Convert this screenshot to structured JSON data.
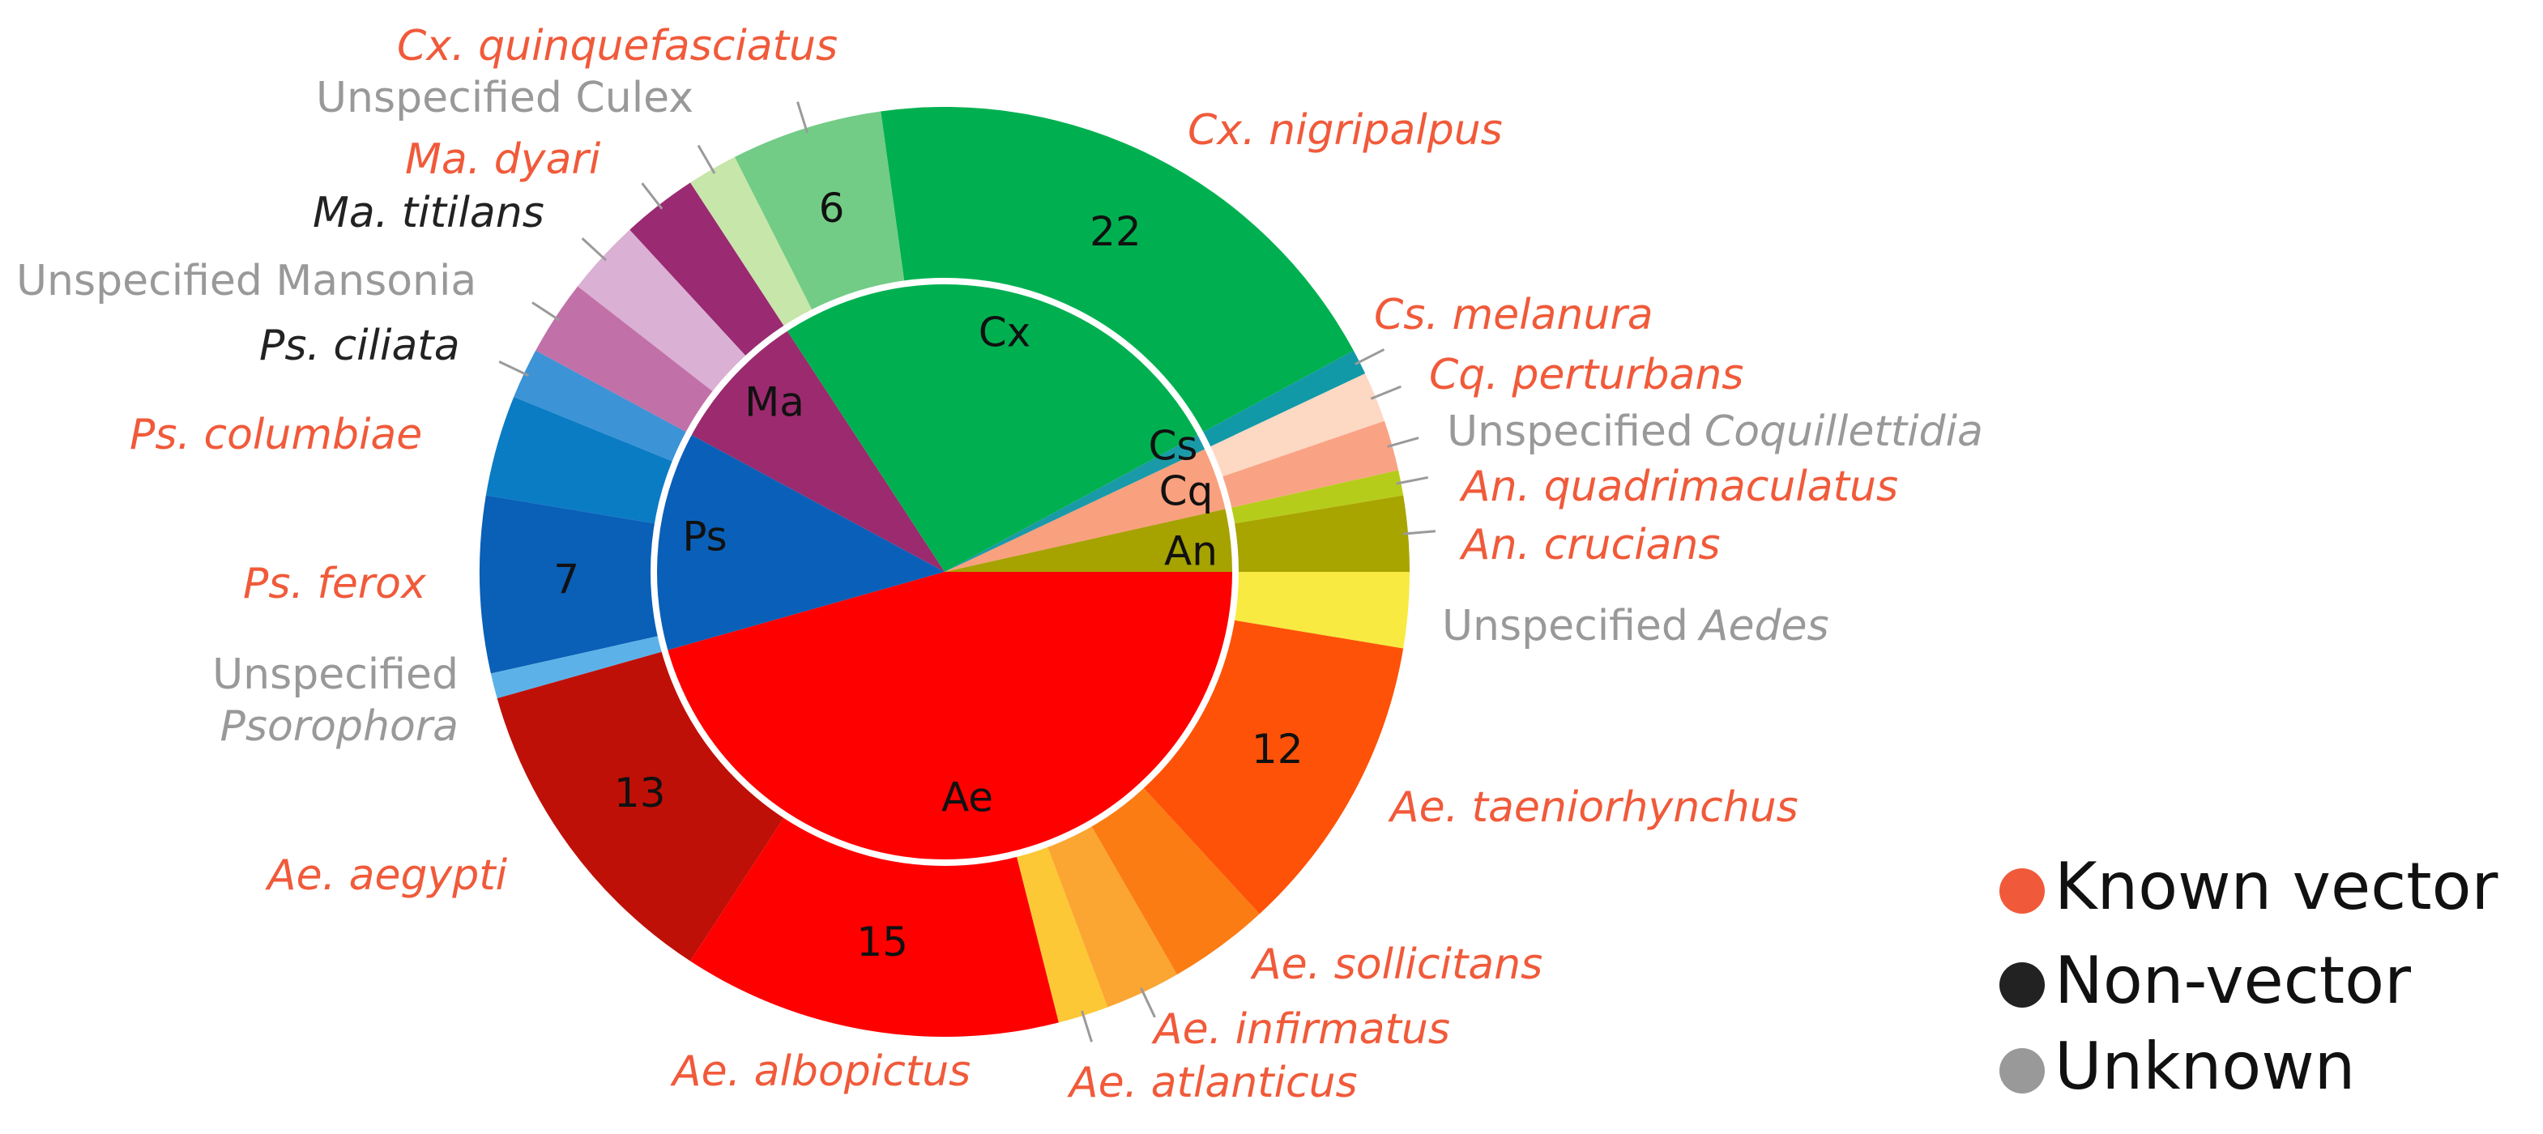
{
  "chart_data": {
    "type": "nested-donut",
    "outer": {
      "labels": [
        [
          "An. crucians"
        ],
        [
          "An. quadrimaculatus"
        ],
        [
          "Unspecified",
          "Coquillettidia"
        ],
        [
          "Cq. perturbans"
        ],
        [
          "Cs. melanura"
        ],
        [
          "Cx. nigripalpus"
        ],
        [
          "Cx. quinquefasciatus"
        ],
        [
          "Unspecified Culex"
        ],
        [
          "Ma. dyari"
        ],
        [
          "Ma. titilans"
        ],
        [
          "Unspecified Mansonia"
        ],
        [
          "Ps. ciliata"
        ],
        [
          "Ps. columbiae"
        ],
        [
          "Ps. ferox"
        ],
        [
          "Unspecified",
          "Psorophora"
        ],
        [
          "Ae. aegypti"
        ],
        [
          "Ae. albopictus"
        ],
        [
          "Ae. atlanticus"
        ],
        [
          "Ae. infirmatus"
        ],
        [
          "Ae. sollicitans"
        ],
        [
          "Ae. taeniorhynchus"
        ],
        [
          "Unspecified",
          "Aedes"
        ]
      ],
      "italic": [
        [
          true
        ],
        [
          true
        ],
        [
          false,
          true
        ],
        [
          true
        ],
        [
          true
        ],
        [
          true
        ],
        [
          true
        ],
        [
          false
        ],
        [
          true
        ],
        [
          true
        ],
        [
          false
        ],
        [
          true
        ],
        [
          true
        ],
        [
          true
        ],
        [
          false,
          true
        ],
        [
          true
        ],
        [
          true
        ],
        [
          true
        ],
        [
          true
        ],
        [
          true
        ],
        [
          true
        ],
        [
          false,
          true
        ]
      ],
      "values": [
        3,
        1,
        2,
        2,
        1,
        22,
        6,
        2,
        3,
        3,
        3,
        2,
        4,
        7,
        1,
        13,
        15,
        2,
        3,
        4,
        12,
        3
      ],
      "show_value": [
        false,
        false,
        false,
        false,
        false,
        true,
        true,
        false,
        false,
        false,
        false,
        false,
        false,
        true,
        false,
        true,
        true,
        false,
        false,
        false,
        true,
        false
      ],
      "colors": [
        "#a8a400",
        "#b6cc1a",
        "#f9a384",
        "#fdd8c2",
        "#1299a8",
        "#00b050",
        "#72cc86",
        "#c7e6aa",
        "#9a2a72",
        "#dab0d4",
        "#c270a8",
        "#3c93d6",
        "#0a7cc4",
        "#0a5fb6",
        "#5cb2e8",
        "#bf1008",
        "#fe0000",
        "#fdc836",
        "#fba632",
        "#fc7c14",
        "#fe5208",
        "#f8ea40"
      ],
      "group": [
        0,
        0,
        1,
        1,
        2,
        3,
        3,
        3,
        4,
        4,
        4,
        5,
        5,
        5,
        5,
        6,
        6,
        6,
        6,
        6,
        6,
        6
      ],
      "status": [
        0,
        0,
        2,
        0,
        0,
        0,
        0,
        2,
        0,
        1,
        2,
        1,
        0,
        0,
        2,
        0,
        0,
        0,
        0,
        0,
        0,
        2
      ]
    },
    "inner": {
      "categories": [
        "An",
        "Cq",
        "Cs",
        "Cx",
        "Ma",
        "Ps",
        "Ae"
      ],
      "colors": [
        "#a6a200",
        "#f9a07e",
        "#1a9aa8",
        "#00b050",
        "#9b2a6e",
        "#0a60b8",
        "#fe0000"
      ]
    },
    "legend": {
      "labels": [
        "Known vector",
        "Non-vector",
        "Unknown"
      ],
      "colors": [
        "#f05a3a",
        "#222222",
        "#999999"
      ],
      "position": "lower right"
    }
  }
}
